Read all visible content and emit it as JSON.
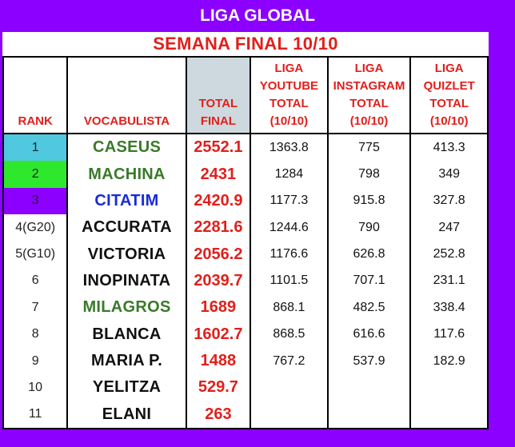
{
  "header": {
    "title": "LIGA GLOBAL",
    "subtitle": "SEMANA FINAL 10/10"
  },
  "columns": {
    "rank": "RANK",
    "name": "VOCABULISTA",
    "total_line1": "TOTAL",
    "total_line2": "FINAL",
    "youtube": [
      "LIGA",
      "YOUTUBE",
      "TOTAL",
      "(10/10)"
    ],
    "instagram": [
      "LIGA",
      "INSTAGRAM",
      "TOTAL",
      "(10/10)"
    ],
    "quizlet": [
      "LIGA",
      "QUIZLET",
      "TOTAL",
      "(10/10)"
    ]
  },
  "colors": {
    "rank1": "#4fc8e0",
    "rank2": "#2ee82e",
    "rank3": "#8b00ff",
    "green_name": "#3a7a2a",
    "blue_name": "#1a2bd6",
    "red_total": "#e0201c"
  },
  "rows": [
    {
      "rank": "1",
      "name": "CASEUS",
      "total": "2552.1",
      "youtube": "1363.8",
      "instagram": "775",
      "quizlet": "413.3",
      "name_color": "#3a7a2a",
      "rank_bg": "#4fc8e0"
    },
    {
      "rank": "2",
      "name": "MACHINA",
      "total": "2431",
      "youtube": "1284",
      "instagram": "798",
      "quizlet": "349",
      "name_color": "#3a7a2a",
      "rank_bg": "#2ee82e"
    },
    {
      "rank": "3",
      "name": "CITATIM",
      "total": "2420.9",
      "youtube": "1177.3",
      "instagram": "915.8",
      "quizlet": "327.8",
      "name_color": "#1a2bd6",
      "rank_bg": "#8b00ff"
    },
    {
      "rank": "4(G20)",
      "name": "ACCURATA",
      "total": "2281.6",
      "youtube": "1244.6",
      "instagram": "790",
      "quizlet": "247",
      "name_color": "#111111",
      "rank_bg": ""
    },
    {
      "rank": "5(G10)",
      "name": "VICTORIA",
      "total": "2056.2",
      "youtube": "1176.6",
      "instagram": "626.8",
      "quizlet": "252.8",
      "name_color": "#111111",
      "rank_bg": ""
    },
    {
      "rank": "6",
      "name": "INOPINATA",
      "total": "2039.7",
      "youtube": "1101.5",
      "instagram": "707.1",
      "quizlet": "231.1",
      "name_color": "#111111",
      "rank_bg": ""
    },
    {
      "rank": "7",
      "name": "MILAGROS",
      "total": "1689",
      "youtube": "868.1",
      "instagram": "482.5",
      "quizlet": "338.4",
      "name_color": "#3a7a2a",
      "rank_bg": ""
    },
    {
      "rank": "8",
      "name": "BLANCA",
      "total": "1602.7",
      "youtube": "868.5",
      "instagram": "616.6",
      "quizlet": "117.6",
      "name_color": "#111111",
      "rank_bg": ""
    },
    {
      "rank": "9",
      "name": "MARIA P.",
      "total": "1488",
      "youtube": "767.2",
      "instagram": "537.9",
      "quizlet": "182.9",
      "name_color": "#111111",
      "rank_bg": ""
    },
    {
      "rank": "10",
      "name": "YELITZA",
      "total": "529.7",
      "youtube": "",
      "instagram": "",
      "quizlet": "",
      "name_color": "#111111",
      "rank_bg": ""
    },
    {
      "rank": "11",
      "name": "ELANI",
      "total": "263",
      "youtube": "",
      "instagram": "",
      "quizlet": "",
      "name_color": "#111111",
      "rank_bg": ""
    }
  ]
}
